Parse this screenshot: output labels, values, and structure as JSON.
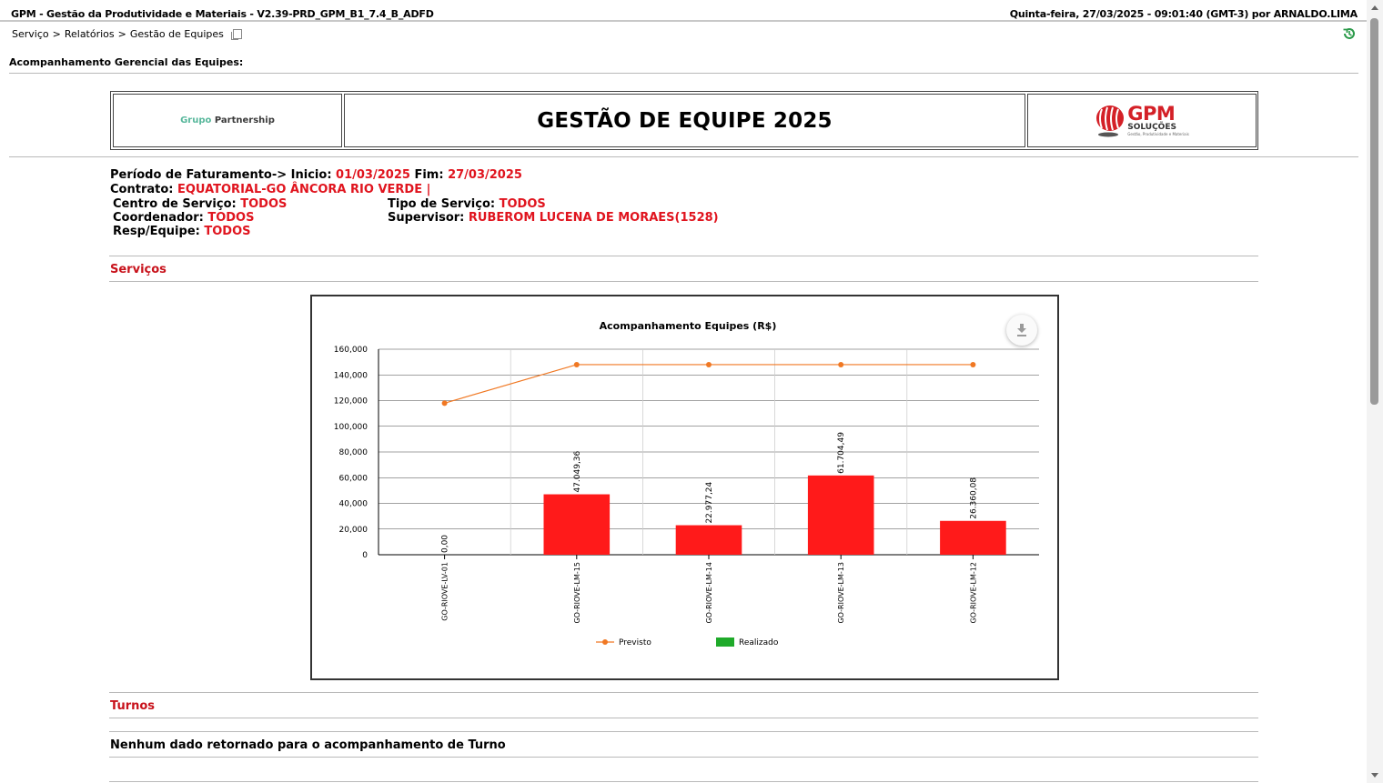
{
  "window": {
    "app_title": "GPM - Gestão da Produtividade e Materiais - V2.39-PRD_GPM_B1_7.4_B_ADFD",
    "session": "Quinta-feira, 27/03/2025 - 09:01:40 (GMT-3) por ARNALDO.LIMA"
  },
  "breadcrumb": {
    "items": [
      "Serviço",
      "Relatórios",
      "Gestão de Equipes"
    ],
    "separator": ">"
  },
  "page": {
    "heading": "Acompanhamento Gerencial das Equipes:"
  },
  "banner": {
    "partner_logo_grupo": "Grupo",
    "partner_logo_name": "Partnership",
    "title": "GESTÃO DE EQUIPE 2025",
    "gpm_logo_main": "GPM",
    "gpm_logo_sub": "SOLUÇÕES",
    "gpm_logo_tagline": "Gestão, Produtividade e Materiais"
  },
  "filters": {
    "periodo_label": "Período de Faturamento-> Inicio:",
    "periodo_inicio": "01/03/2025",
    "fim_label": "Fim:",
    "periodo_fim": "27/03/2025",
    "contrato_label": "Contrato:",
    "contrato": "EQUATORIAL-GO ÂNCORA RIO VERDE |",
    "centro_label": "Centro de Serviço:",
    "centro": "TODOS",
    "tipo_label": "Tipo de Serviço:",
    "tipo": "TODOS",
    "coordenador_label": "Coordenador:",
    "coordenador": "TODOS",
    "supervisor_label": "Supervisor:",
    "supervisor": "RUBEROM LUCENA DE MORAES(1528)",
    "resp_label": "Resp/Equipe:",
    "resp": "TODOS"
  },
  "sections": {
    "servicos": "Serviços",
    "turnos": "Turnos",
    "turnos_empty": "Nenhum dado retornado para o acompanhamento de Turno"
  },
  "colors": {
    "accent_red": "#e0141e",
    "bar": "#ff1a1a",
    "line": "#f07823",
    "legend_realizado": "#1faa2a"
  },
  "icons": {
    "copy": "copy-icon",
    "history": "history-icon",
    "download": "download-icon"
  },
  "chart_data": {
    "type": "bar",
    "title": "Acompanhamento Equipes (R$)",
    "categories": [
      "GO-RIOVE-LV-01",
      "GO-RIOVE-LM-15",
      "GO-RIOVE-LM-14",
      "GO-RIOVE-LM-13",
      "GO-RIOVE-LM-12"
    ],
    "series": [
      {
        "name": "Previsto",
        "kind": "line",
        "values": [
          118000,
          148000,
          148000,
          148000,
          148000
        ]
      },
      {
        "name": "Realizado",
        "kind": "bar",
        "values": [
          0,
          47049.36,
          22977.24,
          61704.49,
          26360.08
        ]
      }
    ],
    "data_labels": [
      "0,00",
      "47.049,36",
      "22.977,24",
      "61.704,49",
      "26.360,08"
    ],
    "yticks": [
      "0",
      "20,000",
      "40,000",
      "60,000",
      "80,000",
      "100,000",
      "120,000",
      "140,000",
      "160,000"
    ],
    "ylim": [
      0,
      160000
    ],
    "grid": true,
    "legend": "bottom"
  }
}
